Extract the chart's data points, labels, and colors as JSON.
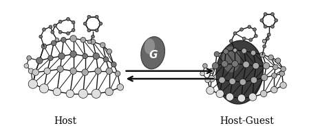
{
  "bg_color": "#ffffff",
  "label_host": "Host",
  "label_host_guest": "Host-Guest",
  "label_guest": "G",
  "arrow_color": "#111111",
  "atom_gray_dark": "#777777",
  "atom_gray_mid": "#aaaaaa",
  "atom_gray_light": "#cccccc",
  "atom_gray_white": "#e0e0e0",
  "bond_color": "#111111",
  "guest_fill": "#888888",
  "guest_dark": "#444444",
  "figsize": [
    4.49,
    1.87
  ],
  "dpi": 100
}
